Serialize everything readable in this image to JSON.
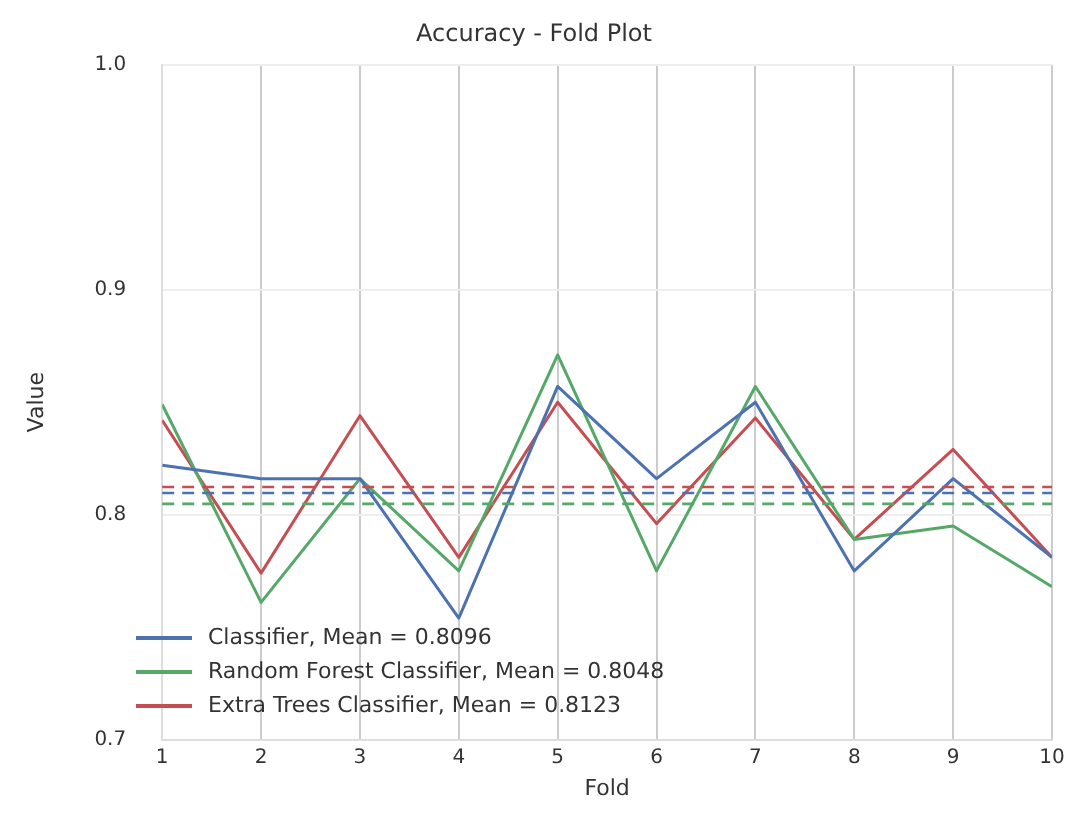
{
  "chart_data": {
    "type": "line",
    "title": "Accuracy - Fold Plot",
    "xlabel": "Fold",
    "ylabel": "Value",
    "x": [
      1,
      2,
      3,
      4,
      5,
      6,
      7,
      8,
      9,
      10
    ],
    "series": [
      {
        "name": "Classifier, Mean = 0.8096",
        "color": "#4c72b0",
        "values": [
          0.822,
          0.816,
          0.816,
          0.754,
          0.857,
          0.816,
          0.85,
          0.775,
          0.816,
          0.781
        ]
      },
      {
        "name": "Random Forest Classifier, Mean = 0.8048",
        "color": "#55a868",
        "values": [
          0.849,
          0.761,
          0.816,
          0.775,
          0.871,
          0.775,
          0.857,
          0.789,
          0.795,
          0.768
        ]
      },
      {
        "name": "Extra Trees Classifier, Mean = 0.8123",
        "color": "#c44e52",
        "values": [
          0.842,
          0.774,
          0.844,
          0.781,
          0.85,
          0.796,
          0.843,
          0.789,
          0.829,
          0.781
        ]
      }
    ],
    "ref_lines": [
      {
        "axis": "y",
        "value": 0.8096,
        "color": "#4c72b0",
        "line_style": "dashed"
      },
      {
        "axis": "y",
        "value": 0.8048,
        "color": "#55a868",
        "line_style": "dashed"
      },
      {
        "axis": "y",
        "value": 0.8123,
        "color": "#c44e52",
        "line_style": "dashed"
      }
    ],
    "xlim": [
      1,
      10
    ],
    "xticks": [
      1,
      2,
      3,
      4,
      5,
      6,
      7,
      8,
      9,
      10
    ],
    "ylim": [
      0.7,
      1.0
    ],
    "yticks": [
      0.7,
      {
        "value": 0.8,
        "label": "0.8"
      },
      {
        "value": 0.9,
        "label": "0.9"
      },
      {
        "value": 1.0,
        "label": "1.0"
      }
    ],
    "grid": true,
    "legend": "bottom left",
    "marker": "none",
    "line_style": "solid"
  }
}
